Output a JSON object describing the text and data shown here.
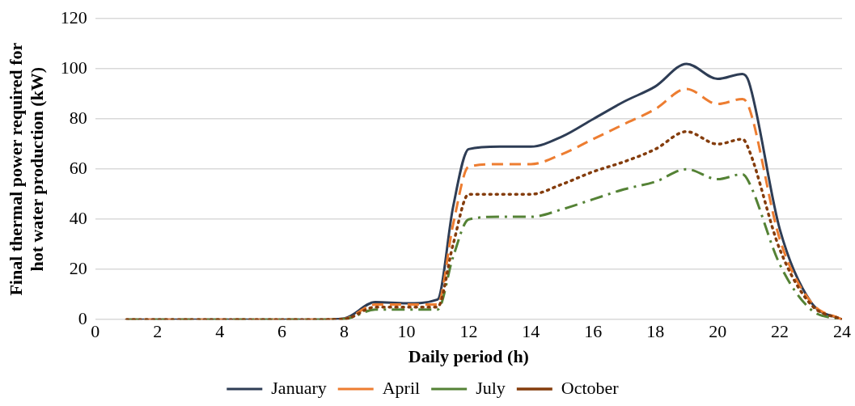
{
  "chart_data": {
    "type": "line",
    "xlabel": "Daily period (h)",
    "ylabel": "Final thermal power required for hot water production (kW)",
    "x": [
      1,
      2,
      3,
      4,
      5,
      6,
      7,
      8,
      9,
      10,
      11,
      11.5,
      12,
      13,
      14,
      15,
      16,
      17,
      18,
      19,
      20,
      20.8,
      21,
      22,
      23,
      24
    ],
    "series": [
      {
        "name": "January",
        "color": "#2e3d55",
        "line_style": "solid",
        "values": [
          0,
          0,
          0,
          0,
          0,
          0,
          0,
          0.5,
          7,
          6.5,
          8,
          45,
          68,
          69,
          69,
          73,
          80,
          87,
          93,
          102,
          96,
          98,
          95,
          36,
          7,
          0
        ]
      },
      {
        "name": "April",
        "color": "#ed7d31",
        "line_style": "dashed",
        "values": [
          0,
          0,
          0,
          0,
          0,
          0,
          0,
          0.3,
          6,
          6,
          6,
          38,
          61,
          62,
          62,
          66,
          72,
          78,
          84,
          92,
          86,
          88,
          85,
          32,
          7,
          0
        ]
      },
      {
        "name": "July",
        "color": "#548235",
        "line_style": "dashdot",
        "values": [
          0,
          0,
          0,
          0,
          0,
          0,
          0,
          0.2,
          4,
          4,
          4,
          25,
          40,
          41,
          41,
          44,
          48,
          52,
          55,
          60,
          56,
          58,
          55,
          22,
          4,
          0
        ]
      },
      {
        "name": "October",
        "color": "#843c0c",
        "line_style": "dotted",
        "values": [
          0,
          0,
          0,
          0,
          0,
          0,
          0,
          0.2,
          5,
          5,
          5,
          30,
          50,
          50,
          50,
          54,
          59,
          63,
          68,
          75,
          70,
          72,
          68,
          28,
          6,
          0
        ]
      }
    ],
    "xlim": [
      0,
      24
    ],
    "xticks": [
      0,
      2,
      4,
      6,
      8,
      10,
      12,
      14,
      16,
      18,
      20,
      22,
      24
    ],
    "ylim": [
      0,
      120
    ],
    "yticks": [
      0,
      20,
      40,
      60,
      80,
      100,
      120
    ],
    "grid": "y",
    "legend": "bottom",
    "marker": "none"
  }
}
